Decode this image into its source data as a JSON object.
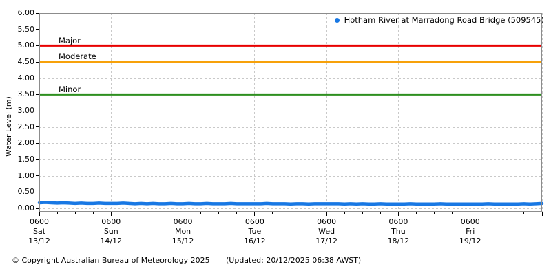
{
  "footer": {
    "copyright": "© Copyright Australian Bureau of Meteorology 2025",
    "updated": "(Updated: 20/12/2025 06:38 AWST)"
  },
  "chart_data": {
    "type": "line",
    "title": "",
    "ylabel": "Water Level (m)",
    "ylim": [
      0,
      6
    ],
    "ytick_step": 0.5,
    "ytick_labels": [
      "6.00",
      "5.50",
      "5.00",
      "4.50",
      "4.00",
      "3.50",
      "3.00",
      "2.50",
      "2.00",
      "1.50",
      "1.00",
      "0.50",
      "0.00"
    ],
    "grid": true,
    "colors": {
      "grid": "#c9c9c9",
      "border": "#8c8c8c",
      "tick": "#000000",
      "series_blue": "#1878e4",
      "major_red": "#e80000",
      "moderate_orange": "#f7a10a",
      "minor_green": "#2e8f1f"
    },
    "legend": {
      "label": "Hotham River at Marradong Road Bridge (509545)",
      "marker_color": "#1878e4",
      "position": "top-right"
    },
    "thresholds": [
      {
        "name": "Minor",
        "value": 3.5,
        "color": "#2e8f1f"
      },
      {
        "name": "Moderate",
        "value": 4.5,
        "color": "#f7a10a"
      },
      {
        "name": "Major",
        "value": 5.0,
        "color": "#e80000"
      }
    ],
    "x_axis": {
      "total_hours": 168,
      "minor_tick_hours": 6,
      "major_tick_hours": 24,
      "days": [
        {
          "time": "0600",
          "day": "Sat",
          "date": "13/12"
        },
        {
          "time": "0600",
          "day": "Sun",
          "date": "14/12"
        },
        {
          "time": "0600",
          "day": "Mon",
          "date": "15/12"
        },
        {
          "time": "0600",
          "day": "Tue",
          "date": "16/12"
        },
        {
          "time": "0600",
          "day": "Wed",
          "date": "17/12"
        },
        {
          "time": "0600",
          "day": "Thu",
          "date": "18/12"
        },
        {
          "time": "0600",
          "day": "Fri",
          "date": "19/12"
        }
      ]
    },
    "series": [
      {
        "name": "Hotham River at Marradong Road Bridge (509545)",
        "color": "#1878e4",
        "x_start_hour": 0,
        "x_step_hours": 2,
        "values": [
          0.17,
          0.18,
          0.17,
          0.16,
          0.17,
          0.16,
          0.15,
          0.16,
          0.15,
          0.15,
          0.16,
          0.15,
          0.15,
          0.15,
          0.16,
          0.15,
          0.14,
          0.15,
          0.14,
          0.15,
          0.14,
          0.14,
          0.15,
          0.14,
          0.14,
          0.15,
          0.14,
          0.14,
          0.15,
          0.14,
          0.14,
          0.14,
          0.15,
          0.14,
          0.14,
          0.14,
          0.14,
          0.14,
          0.15,
          0.14,
          0.14,
          0.14,
          0.13,
          0.14,
          0.14,
          0.13,
          0.14,
          0.14,
          0.14,
          0.14,
          0.14,
          0.13,
          0.14,
          0.13,
          0.14,
          0.13,
          0.13,
          0.14,
          0.13,
          0.13,
          0.13,
          0.13,
          0.14,
          0.13,
          0.13,
          0.13,
          0.13,
          0.14,
          0.13,
          0.13,
          0.13,
          0.13,
          0.13,
          0.13,
          0.13,
          0.14,
          0.13,
          0.13,
          0.13,
          0.13,
          0.13,
          0.14,
          0.13,
          0.14,
          0.15
        ]
      }
    ]
  }
}
